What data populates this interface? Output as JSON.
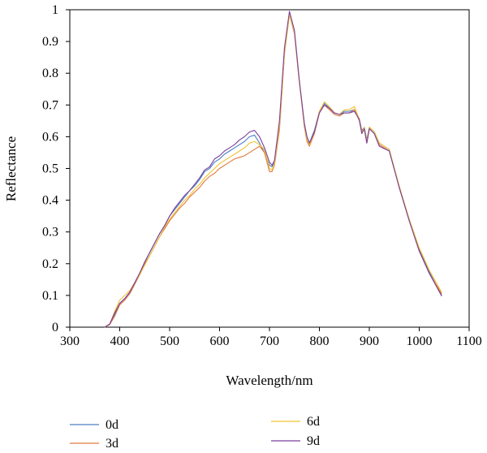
{
  "chart_data": {
    "type": "line",
    "title": "",
    "xlabel": "Wavelength/nm",
    "ylabel": "Reflectance",
    "xlim": [
      300,
      1100
    ],
    "ylim": [
      0,
      1
    ],
    "xticks": [
      "300",
      "400",
      "500",
      "600",
      "700",
      "800",
      "900",
      "1000",
      "1100"
    ],
    "yticks": [
      "0",
      "0.1",
      "0.2",
      "0.3",
      "0.4",
      "0.5",
      "0.6",
      "0.7",
      "0.8",
      "0.9",
      "1"
    ],
    "grid": false,
    "legend_position": "bottom",
    "x": [
      370,
      380,
      390,
      400,
      410,
      420,
      430,
      440,
      450,
      460,
      470,
      480,
      490,
      500,
      510,
      520,
      530,
      540,
      550,
      560,
      570,
      580,
      590,
      600,
      610,
      620,
      630,
      640,
      650,
      660,
      670,
      680,
      690,
      700,
      705,
      710,
      720,
      730,
      740,
      750,
      760,
      770,
      775,
      780,
      790,
      800,
      810,
      820,
      830,
      840,
      850,
      860,
      870,
      880,
      885,
      890,
      895,
      900,
      910,
      920,
      940,
      960,
      980,
      1000,
      1020,
      1045
    ],
    "series": [
      {
        "name": "0d",
        "color": "#4a7fc1",
        "values": [
          0.0,
          0.01,
          0.04,
          0.075,
          0.09,
          0.11,
          0.14,
          0.17,
          0.205,
          0.235,
          0.265,
          0.295,
          0.32,
          0.35,
          0.37,
          0.39,
          0.41,
          0.43,
          0.445,
          0.465,
          0.49,
          0.5,
          0.52,
          0.53,
          0.545,
          0.555,
          0.565,
          0.575,
          0.585,
          0.6,
          0.605,
          0.58,
          0.55,
          0.51,
          0.505,
          0.52,
          0.64,
          0.87,
          0.99,
          0.93,
          0.77,
          0.64,
          0.6,
          0.58,
          0.62,
          0.68,
          0.705,
          0.69,
          0.675,
          0.67,
          0.68,
          0.68,
          0.685,
          0.655,
          0.62,
          0.63,
          0.59,
          0.63,
          0.615,
          0.58,
          0.56,
          0.44,
          0.34,
          0.245,
          0.175,
          0.1
        ]
      },
      {
        "name": "3d",
        "color": "#e07a3f",
        "values": [
          0.0,
          0.008,
          0.035,
          0.07,
          0.085,
          0.105,
          0.135,
          0.165,
          0.2,
          0.225,
          0.255,
          0.285,
          0.31,
          0.335,
          0.355,
          0.375,
          0.39,
          0.41,
          0.425,
          0.44,
          0.46,
          0.475,
          0.485,
          0.5,
          0.51,
          0.52,
          0.53,
          0.535,
          0.54,
          0.55,
          0.56,
          0.57,
          0.55,
          0.49,
          0.49,
          0.51,
          0.62,
          0.86,
          0.985,
          0.925,
          0.77,
          0.63,
          0.585,
          0.57,
          0.61,
          0.675,
          0.7,
          0.685,
          0.67,
          0.665,
          0.675,
          0.675,
          0.685,
          0.65,
          0.61,
          0.625,
          0.58,
          0.625,
          0.61,
          0.575,
          0.555,
          0.44,
          0.335,
          0.24,
          0.17,
          0.105
        ]
      },
      {
        "name": "6d",
        "color": "#f0c230",
        "values": [
          0.0,
          0.01,
          0.05,
          0.085,
          0.1,
          0.115,
          0.14,
          0.165,
          0.195,
          0.225,
          0.255,
          0.285,
          0.315,
          0.34,
          0.36,
          0.38,
          0.4,
          0.415,
          0.435,
          0.45,
          0.47,
          0.485,
          0.5,
          0.515,
          0.525,
          0.535,
          0.545,
          0.555,
          0.565,
          0.58,
          0.585,
          0.575,
          0.56,
          0.5,
          0.495,
          0.515,
          0.63,
          0.865,
          0.985,
          0.93,
          0.77,
          0.635,
          0.59,
          0.575,
          0.615,
          0.68,
          0.71,
          0.695,
          0.675,
          0.67,
          0.685,
          0.685,
          0.695,
          0.655,
          0.615,
          0.63,
          0.585,
          0.63,
          0.615,
          0.58,
          0.56,
          0.445,
          0.34,
          0.25,
          0.18,
          0.11
        ]
      },
      {
        "name": "9d",
        "color": "#7b3f9e",
        "values": [
          0.0,
          0.01,
          0.045,
          0.075,
          0.09,
          0.11,
          0.14,
          0.17,
          0.205,
          0.235,
          0.265,
          0.295,
          0.32,
          0.35,
          0.375,
          0.395,
          0.415,
          0.43,
          0.45,
          0.47,
          0.495,
          0.505,
          0.53,
          0.54,
          0.555,
          0.565,
          0.575,
          0.59,
          0.6,
          0.615,
          0.62,
          0.6,
          0.565,
          0.52,
          0.51,
          0.525,
          0.65,
          0.88,
          0.995,
          0.935,
          0.775,
          0.64,
          0.6,
          0.58,
          0.615,
          0.675,
          0.7,
          0.69,
          0.675,
          0.67,
          0.675,
          0.675,
          0.68,
          0.655,
          0.61,
          0.625,
          0.58,
          0.625,
          0.61,
          0.57,
          0.555,
          0.44,
          0.335,
          0.24,
          0.17,
          0.098
        ]
      }
    ]
  }
}
